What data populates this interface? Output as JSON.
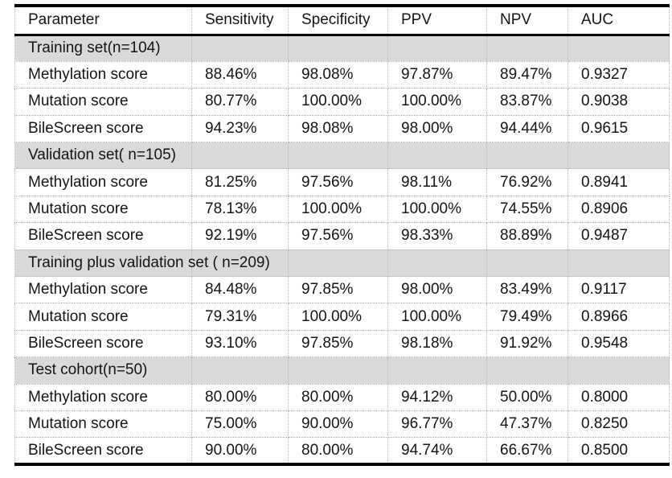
{
  "table": {
    "columns": [
      "Parameter",
      "Sensitivity",
      "Specificity",
      "PPV",
      "NPV",
      "AUC"
    ],
    "sections": [
      {
        "title": "Training set(n=104)",
        "rows": [
          {
            "parameter": "Methylation score",
            "sensitivity": "88.46%",
            "specificity": "98.08%",
            "ppv": "97.87%",
            "npv": "89.47%",
            "auc": "0.9327"
          },
          {
            "parameter": "Mutation score",
            "sensitivity": "80.77%",
            "specificity": "100.00%",
            "ppv": "100.00%",
            "npv": "83.87%",
            "auc": "0.9038"
          },
          {
            "parameter": "BileScreen score",
            "sensitivity": "94.23%",
            "specificity": "98.08%",
            "ppv": "98.00%",
            "npv": "94.44%",
            "auc": "0.9615"
          }
        ]
      },
      {
        "title": "Validation set( n=105)",
        "rows": [
          {
            "parameter": "Methylation score",
            "sensitivity": "81.25%",
            "specificity": "97.56%",
            "ppv": "98.11%",
            "npv": "76.92%",
            "auc": "0.8941"
          },
          {
            "parameter": "Mutation score",
            "sensitivity": "78.13%",
            "specificity": "100.00%",
            "ppv": "100.00%",
            "npv": "74.55%",
            "auc": "0.8906"
          },
          {
            "parameter": "BileScreen score",
            "sensitivity": "92.19%",
            "specificity": "97.56%",
            "ppv": "98.33%",
            "npv": "88.89%",
            "auc": "0.9487"
          }
        ]
      },
      {
        "title": "Training plus validation set ( n=209)",
        "rows": [
          {
            "parameter": "Methylation score",
            "sensitivity": "84.48%",
            "specificity": "97.85%",
            "ppv": "98.00%",
            "npv": "83.49%",
            "auc": "0.9117"
          },
          {
            "parameter": "Mutation score",
            "sensitivity": "79.31%",
            "specificity": "100.00%",
            "ppv": "100.00%",
            "npv": "79.49%",
            "auc": "0.8966"
          },
          {
            "parameter": "BileScreen score",
            "sensitivity": "93.10%",
            "specificity": "97.85%",
            "ppv": "98.18%",
            "npv": "91.92%",
            "auc": "0.9548"
          }
        ]
      },
      {
        "title": "Test cohort(n=50)",
        "rows": [
          {
            "parameter": "Methylation score",
            "sensitivity": "80.00%",
            "specificity": "80.00%",
            "ppv": "94.12%",
            "npv": "50.00%",
            "auc": "0.8000"
          },
          {
            "parameter": "Mutation score",
            "sensitivity": "75.00%",
            "specificity": "90.00%",
            "ppv": "96.77%",
            "npv": "47.37%",
            "auc": "0.8250"
          },
          {
            "parameter": "BileScreen score",
            "sensitivity": "90.00%",
            "specificity": "80.00%",
            "ppv": "94.74%",
            "npv": "66.67%",
            "auc": "0.8500"
          }
        ]
      }
    ],
    "colors": {
      "page_bg": "#ffffff",
      "section_bg": "#d9d9d9",
      "border_heavy": "#000000",
      "border_light": "#b3b3b3",
      "text": "#141414"
    }
  }
}
